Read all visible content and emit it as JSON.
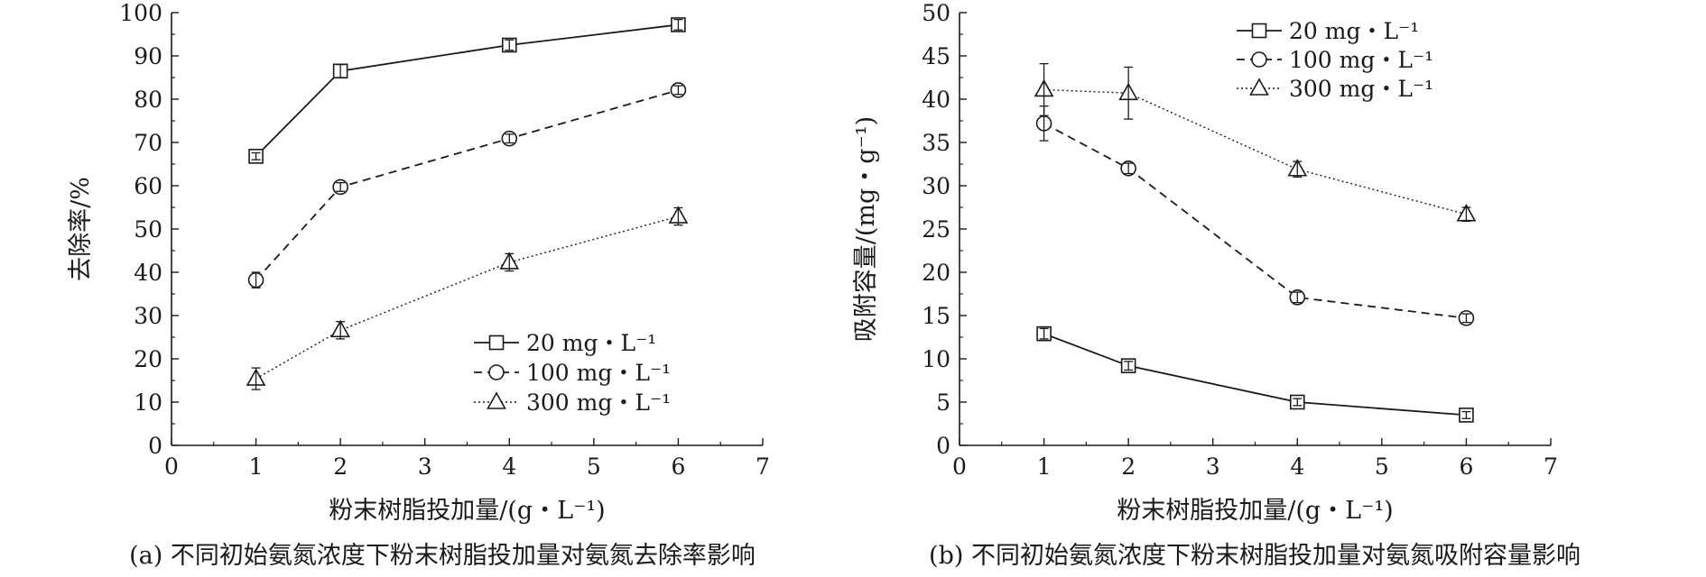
{
  "chart_data": [
    {
      "type": "line",
      "caption": "(a) 不同初始氨氮浓度下粉末树脂投加量对氨氮去除率影响",
      "xlabel": "粉末树脂投加量/(g・L⁻¹)",
      "ylabel": "去除率/%",
      "xlim": [
        0,
        7
      ],
      "ylim": [
        0,
        100
      ],
      "xticks": [
        "0",
        "1",
        "2",
        "3",
        "4",
        "5",
        "6",
        "7"
      ],
      "yticks": [
        "0",
        "10",
        "20",
        "30",
        "40",
        "50",
        "60",
        "70",
        "80",
        "90",
        "100"
      ],
      "legend_position": "lower-right",
      "x": [
        1,
        2,
        4,
        6
      ],
      "series": [
        {
          "name": "20 mg・L⁻¹",
          "marker": "square",
          "dash": "solid",
          "values": [
            66.8,
            86.5,
            92.5,
            97.2
          ],
          "err": [
            0.8,
            1.5,
            1.2,
            1.2
          ]
        },
        {
          "name": "100 mg・L⁻¹",
          "marker": "circle",
          "dash": "dashed",
          "values": [
            38.2,
            59.7,
            70.9,
            82.1
          ],
          "err": [
            1.8,
            1.0,
            1.0,
            1.0
          ]
        },
        {
          "name": "300 mg・L⁻¹",
          "marker": "triangle",
          "dash": "dotted",
          "values": [
            15.4,
            26.6,
            42.3,
            52.9
          ],
          "err": [
            2.5,
            2.0,
            2.0,
            2.0
          ]
        }
      ]
    },
    {
      "type": "line",
      "caption": "(b) 不同初始氨氮浓度下粉末树脂投加量对氨氮吸附容量影响",
      "xlabel": "粉末树脂投加量/(g・L⁻¹)",
      "ylabel": "吸附容量/(mg・g⁻¹)",
      "xlim": [
        0,
        7
      ],
      "ylim": [
        0,
        50
      ],
      "xticks": [
        "0",
        "1",
        "2",
        "3",
        "4",
        "5",
        "6",
        "7"
      ],
      "yticks": [
        "0",
        "5",
        "10",
        "15",
        "20",
        "25",
        "30",
        "35",
        "40",
        "45",
        "50"
      ],
      "legend_position": "top-right",
      "x": [
        1,
        2,
        4,
        6
      ],
      "series": [
        {
          "name": "20 mg・L⁻¹",
          "marker": "square",
          "dash": "solid",
          "values": [
            12.9,
            9.2,
            5.0,
            3.5
          ],
          "err": [
            0.6,
            0.5,
            0.4,
            0.4
          ]
        },
        {
          "name": "100 mg・L⁻¹",
          "marker": "circle",
          "dash": "dashed",
          "values": [
            37.2,
            32.0,
            17.1,
            14.7
          ],
          "err": [
            2.0,
            0.6,
            0.6,
            0.5
          ]
        },
        {
          "name": "300 mg・L⁻¹",
          "marker": "triangle",
          "dash": "dotted",
          "values": [
            41.1,
            40.7,
            31.9,
            26.7
          ],
          "err": [
            3.0,
            3.0,
            0.9,
            0.8
          ]
        }
      ]
    }
  ]
}
